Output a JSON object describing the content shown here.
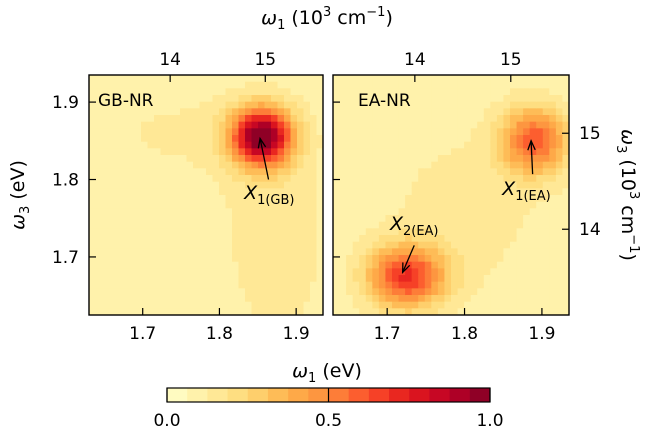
{
  "chart_data": {
    "type": "heatmap",
    "xlabel_bottom": "ω",
    "xlabel_bottom_sub": "1",
    "xlabel_bottom_unit": " (eV)",
    "xlabel_top": "ω",
    "xlabel_top_sub": "1",
    "xlabel_top_unit_pre": " (10",
    "xlabel_top_unit_exp": "3",
    "xlabel_top_unit_post": " cm",
    "xlabel_top_unit_exp2": "−1",
    "xlabel_top_unit_close": ")",
    "ylabel_left": "ω",
    "ylabel_left_sub": "3",
    "ylabel_left_unit": " (eV)",
    "ylabel_right": "ω",
    "ylabel_right_sub": "3",
    "ylabel_right_unit_pre": " (10",
    "ylabel_right_unit_exp": "3",
    "ylabel_right_unit_post": " cm",
    "ylabel_right_unit_exp2": "−1",
    "ylabel_right_unit_close": ")",
    "x_range_ev": [
      1.63,
      1.935
    ],
    "y_range_ev": [
      1.625,
      1.935
    ],
    "x_ticks_ev": [
      "1.7",
      "1.8",
      "1.9"
    ],
    "y_ticks_ev": [
      "1.7",
      "1.8",
      "1.9"
    ],
    "top_ticks_wavenumber": [
      "14",
      "15"
    ],
    "right_ticks_wavenumber": [
      "14",
      "15"
    ],
    "ev_to_1e3_per_cm": 8.06554,
    "panels": [
      {
        "name": "GB-NR",
        "peaks": [
          {
            "x": 1.855,
            "y": 1.855,
            "amp": 0.93,
            "sx": 0.028,
            "sy": 0.026
          },
          {
            "x": 1.875,
            "y": 1.72,
            "amp": 0.1,
            "sx": 0.05,
            "sy": 0.1
          },
          {
            "x": 1.74,
            "y": 1.86,
            "amp": 0.06,
            "sx": 0.1,
            "sy": 0.06
          }
        ],
        "background": 0.07,
        "annotations": [
          {
            "label": "X",
            "sub": "1(GB)",
            "text_x": 1.865,
            "text_y": 1.775,
            "arrow_from_x": 1.864,
            "arrow_from_y": 1.8,
            "arrow_to_x": 1.853,
            "arrow_to_y": 1.853
          }
        ]
      },
      {
        "name": "EA-NR",
        "peaks": [
          {
            "x": 1.89,
            "y": 1.85,
            "amp": 0.52,
            "sx": 0.03,
            "sy": 0.03
          },
          {
            "x": 1.725,
            "y": 1.675,
            "amp": 0.6,
            "sx": 0.035,
            "sy": 0.028
          },
          {
            "x": 1.8,
            "y": 1.76,
            "amp": 0.07,
            "sx": 0.08,
            "sy": 0.08
          }
        ],
        "background": 0.08,
        "annotations": [
          {
            "label": "X",
            "sub": "2(EA)",
            "text_x": 1.735,
            "text_y": 1.735,
            "arrow_from_x": 1.735,
            "arrow_from_y": 1.715,
            "arrow_to_x": 1.72,
            "arrow_to_y": 1.68
          },
          {
            "label": "X",
            "sub": "1(EA)",
            "text_x": 1.88,
            "text_y": 1.78,
            "arrow_from_x": 1.888,
            "arrow_from_y": 1.807,
            "arrow_to_x": 1.886,
            "arrow_to_y": 1.85
          }
        ]
      }
    ],
    "colorbar": {
      "ticks": [
        "0.0",
        "0.5",
        "1.0"
      ],
      "range": [
        0,
        1
      ],
      "levels": 16,
      "colors": [
        "#ffffcc",
        "#ffeda0",
        "#fed976",
        "#feb24c",
        "#fd8d3c",
        "#fc4e2a",
        "#e31a1c",
        "#bd0026",
        "#800026"
      ]
    }
  }
}
